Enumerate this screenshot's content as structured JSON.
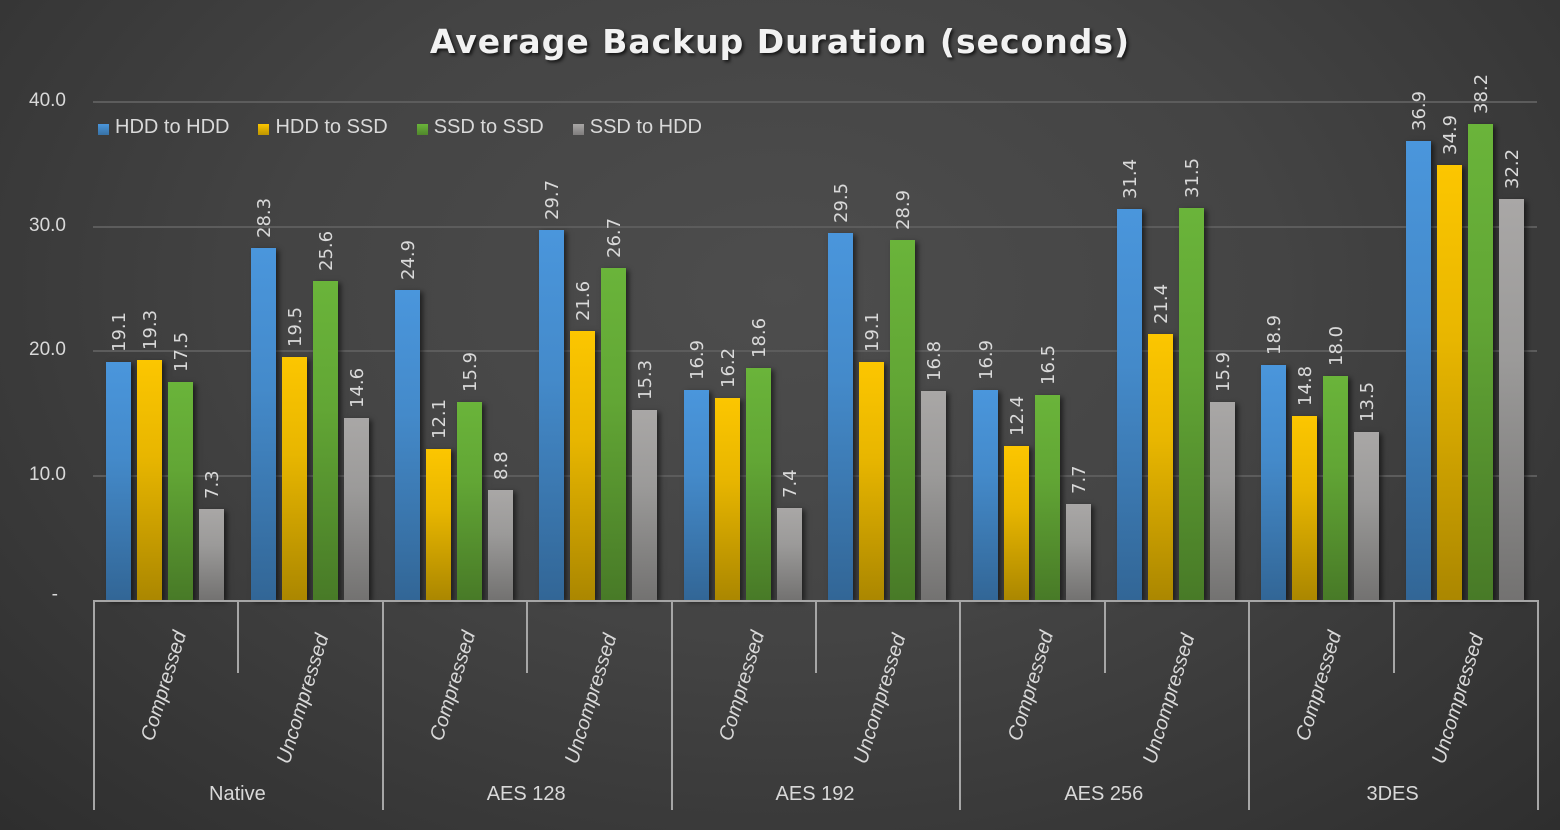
{
  "chart_data": {
    "type": "bar",
    "title": "Average Backup Duration (seconds)",
    "xlabel": "",
    "ylabel": "",
    "ylim": [
      0,
      40
    ],
    "yticks": [
      "-",
      "10.0",
      "20.0",
      "30.0",
      "40.0"
    ],
    "grid": true,
    "legend_position": "top-left",
    "categories": [
      "Native",
      "AES 128",
      "AES 192",
      "AES 256",
      "3DES"
    ],
    "subcategories": [
      "Compressed",
      "Uncompressed"
    ],
    "x": [
      "Native / Compressed",
      "Native / Uncompressed",
      "AES 128 / Compressed",
      "AES 128 / Uncompressed",
      "AES 192 / Compressed",
      "AES 192 / Uncompressed",
      "AES 256 / Compressed",
      "AES 256 / Uncompressed",
      "3DES / Compressed",
      "3DES / Uncompressed"
    ],
    "series": [
      {
        "name": "HDD to HDD",
        "color": "#4a96dc",
        "values": [
          19.1,
          28.3,
          24.9,
          29.7,
          16.9,
          29.5,
          16.9,
          31.4,
          18.9,
          36.9
        ]
      },
      {
        "name": "HDD to SSD",
        "color": "#fcc600",
        "values": [
          19.3,
          19.5,
          12.1,
          21.6,
          16.2,
          19.1,
          12.4,
          21.4,
          14.8,
          34.9
        ]
      },
      {
        "name": "SSD to SSD",
        "color": "#6ab43a",
        "values": [
          17.5,
          25.6,
          15.9,
          26.7,
          18.6,
          28.9,
          16.5,
          31.5,
          18.0,
          38.2
        ]
      },
      {
        "name": "SSD to HDD",
        "color": "#a9a7a6",
        "values": [
          7.3,
          14.6,
          8.8,
          15.3,
          7.4,
          16.8,
          7.7,
          15.9,
          13.5,
          32.2
        ]
      }
    ],
    "data_labels": true
  }
}
